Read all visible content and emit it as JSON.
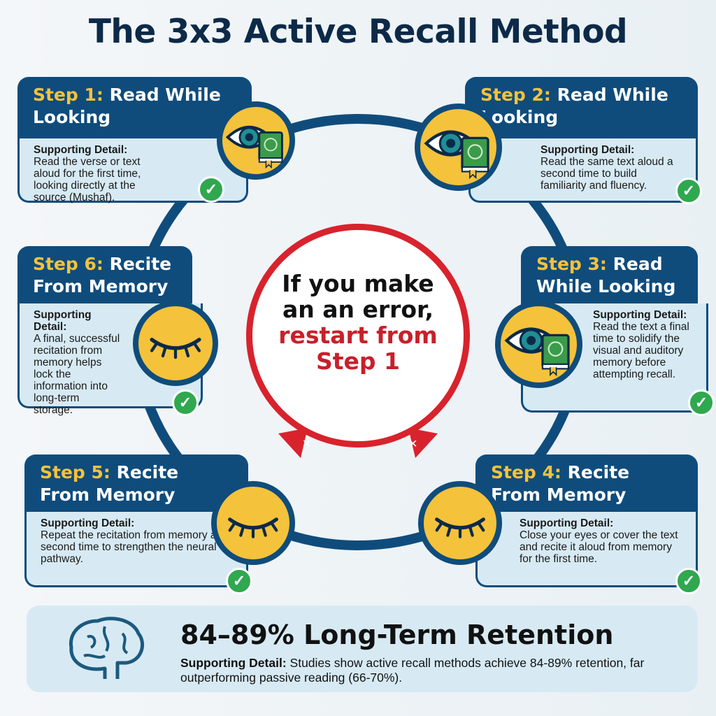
{
  "title": "The 3x3 Active Recall Method",
  "steps": [
    {
      "num": "Step 1:",
      "title": "Read While Looking",
      "detail_label": "Supporting Detail:",
      "detail": "Read the verse or text aloud for the first time, looking directly at the source (Mushaf).",
      "icon": "eye-book-icon"
    },
    {
      "num": "Step 2:",
      "title": "Read While Looking",
      "detail_label": "Supporting Detail:",
      "detail": "Read the same text aloud a second time to build familiarity and fluency.",
      "icon": "eye-book-icon"
    },
    {
      "num": "Step 3:",
      "title": "Read While Looking",
      "detail_label": "Supporting Detail:",
      "detail": "Read the text a final time to solidify the visual and auditory memory before attempting recall.",
      "icon": "eye-book-icon"
    },
    {
      "num": "Step 4:",
      "title": "Recite From Memory",
      "detail_label": "Supporting Detail:",
      "detail": "Close your eyes or cover the text and recite it aloud from memory for the first time.",
      "icon": "closed-eye-icon"
    },
    {
      "num": "Step 5:",
      "title": "Recite From Memory",
      "detail_label": "Supporting Detail:",
      "detail": "Repeat the recitation from memory a second time to strengthen the neural pathway.",
      "icon": "closed-eye-icon"
    },
    {
      "num": "Step 6:",
      "title": "Recite From Memory",
      "detail_label": "Supporting Detail:",
      "detail": "A final, successful recitation from memory helps lock the information into long-term storage.",
      "icon": "closed-eye-icon"
    }
  ],
  "center": {
    "line1": "If you make an an error,",
    "line2": "restart from Step 1"
  },
  "summary": {
    "title": "84–89% Long-Term Retention",
    "detail_label": "Supporting Detail:",
    "detail": "Studies show active recall methods achieve 84-89% retention, far outperforming passive reading (66-70%).",
    "icon": "brain-icon"
  },
  "colors": {
    "navy": "#0f4c7c",
    "yellow": "#f5c23b",
    "red": "#d8232d",
    "green": "#2fa84f",
    "card": "#d7eaf4"
  }
}
